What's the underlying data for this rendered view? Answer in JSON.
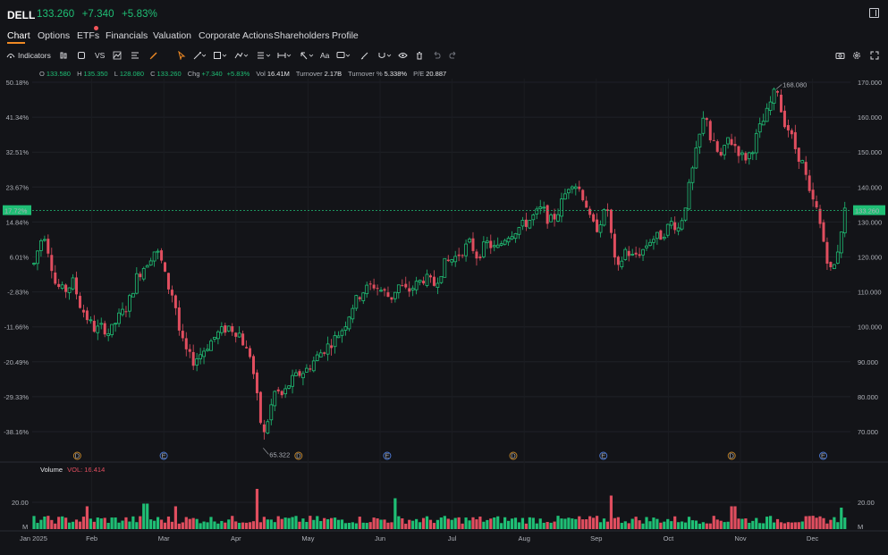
{
  "header": {
    "ticker": "DELL",
    "price": "133.260",
    "change": "+7.340",
    "change_pct": "+5.83%"
  },
  "tabs": [
    {
      "label": "Chart",
      "active": true
    },
    {
      "label": "Options"
    },
    {
      "label": "ETFs",
      "badge": true
    },
    {
      "label": "Financials"
    },
    {
      "label": "Valuation"
    },
    {
      "label": "Corporate Actions"
    },
    {
      "label": "Shareholders"
    },
    {
      "label": "Profile"
    }
  ],
  "toolbar": {
    "indicators_label": "Indicators",
    "vs_label": "VS",
    "text_label": "Aa",
    "icons": [
      "indicators-icon",
      "candle-type-icon",
      "layout-icon",
      "compare-icon",
      "draw-icon",
      "template-icon",
      "brush-icon",
      "cursor-icon",
      "trendline-icon",
      "rect-icon",
      "path-icon",
      "measure-icon",
      "arrow-icon",
      "text-icon",
      "comment-icon",
      "pen-icon",
      "magnet-icon",
      "eye-icon",
      "trash-icon",
      "undo-icon",
      "redo-icon",
      "camera-icon",
      "settings-icon",
      "fullscreen-icon"
    ]
  },
  "ohlc": {
    "o_label": "O",
    "o": "133.580",
    "h_label": "H",
    "h": "135.350",
    "l_label": "L",
    "l": "128.080",
    "c_label": "C",
    "c": "133.260",
    "chg_label": "Chg",
    "chg": "+7.340",
    "chg_pct": "+5.83%",
    "vol_label": "Vol",
    "vol": "16.41M",
    "turnover_label": "Turnover",
    "turnover": "2.17B",
    "turnover_pct_label": "Turnover %",
    "turnover_pct": "5.338%",
    "pe_label": "P/E",
    "pe": "20.887"
  },
  "volume_panel": {
    "label": "Volume",
    "vol_text": "VOL: 16.414",
    "tick": "20.00",
    "unit": "M"
  },
  "colors": {
    "up": "#1fbf75",
    "down": "#e04e5f",
    "accent": "#f08a24",
    "background": "#131418"
  },
  "chart_data": {
    "type": "candlestick",
    "price_axis": {
      "ticks": [
        170,
        160,
        150,
        140,
        130,
        120,
        110,
        100,
        90,
        80,
        70
      ],
      "labels": [
        "170.000",
        "160.000",
        "150.000",
        "140.000",
        "130.000",
        "120.000",
        "110.000",
        "100.000",
        "90.000",
        "80.000",
        "70.000"
      ],
      "range": [
        62,
        172
      ]
    },
    "pct_axis": {
      "labels": [
        "50.18%",
        "41.34%",
        "32.51%",
        "23.67%",
        "14.84%",
        "6.01%",
        "-2.83%",
        "-11.66%",
        "-20.49%",
        "-29.33%",
        "-38.16%"
      ]
    },
    "current_price": {
      "value": 133.26,
      "label": "133.260",
      "pct_label": "17.72%"
    },
    "annotations": [
      {
        "text": "168.080",
        "value": 168.08,
        "month_index": 10.3
      },
      {
        "text": "65.322",
        "value": 65.322,
        "month_index": 3.18
      }
    ],
    "x_axis": {
      "labels": [
        "Jan 2025",
        "Feb",
        "Mar",
        "Apr",
        "May",
        "Jun",
        "Jul",
        "Aug",
        "Sep",
        "Oct",
        "Nov",
        "Dec"
      ]
    },
    "events": [
      {
        "type": "D",
        "month_index": 0.6
      },
      {
        "type": "E",
        "month_index": 1.8
      },
      {
        "type": "D",
        "month_index": 3.67
      },
      {
        "type": "E",
        "month_index": 4.9
      },
      {
        "type": "D",
        "month_index": 6.65
      },
      {
        "type": "E",
        "month_index": 7.9
      },
      {
        "type": "D",
        "month_index": 9.68
      },
      {
        "type": "E",
        "month_index": 10.95
      }
    ],
    "price_path": [
      [
        0.0,
        118
      ],
      [
        0.08,
        124
      ],
      [
        0.14,
        127
      ],
      [
        0.22,
        120
      ],
      [
        0.3,
        112
      ],
      [
        0.42,
        110
      ],
      [
        0.55,
        113
      ],
      [
        0.62,
        107
      ],
      [
        0.75,
        102
      ],
      [
        0.85,
        99
      ],
      [
        0.95,
        100
      ],
      [
        1.05,
        98
      ],
      [
        1.15,
        102
      ],
      [
        1.3,
        106
      ],
      [
        1.42,
        114
      ],
      [
        1.55,
        118
      ],
      [
        1.68,
        122
      ],
      [
        1.75,
        120
      ],
      [
        1.85,
        112
      ],
      [
        1.95,
        108
      ],
      [
        2.0,
        100
      ],
      [
        2.08,
        94
      ],
      [
        2.2,
        90
      ],
      [
        2.3,
        92
      ],
      [
        2.42,
        95
      ],
      [
        2.55,
        98
      ],
      [
        2.7,
        100
      ],
      [
        2.85,
        98
      ],
      [
        2.95,
        93
      ],
      [
        3.0,
        92
      ],
      [
        3.05,
        86
      ],
      [
        3.12,
        76
      ],
      [
        3.18,
        68
      ],
      [
        3.25,
        74
      ],
      [
        3.35,
        82
      ],
      [
        3.45,
        80
      ],
      [
        3.55,
        84
      ],
      [
        3.65,
        86
      ],
      [
        3.8,
        88
      ],
      [
        3.95,
        92
      ],
      [
        4.05,
        94
      ],
      [
        4.15,
        96
      ],
      [
        4.3,
        100
      ],
      [
        4.42,
        106
      ],
      [
        4.55,
        110
      ],
      [
        4.7,
        112
      ],
      [
        4.85,
        110
      ],
      [
        4.95,
        108
      ],
      [
        5.05,
        112
      ],
      [
        5.18,
        110
      ],
      [
        5.3,
        112
      ],
      [
        5.42,
        114
      ],
      [
        5.55,
        112
      ],
      [
        5.7,
        118
      ],
      [
        5.85,
        120
      ],
      [
        5.95,
        122
      ],
      [
        6.05,
        124
      ],
      [
        6.15,
        120
      ],
      [
        6.28,
        124
      ],
      [
        6.42,
        122
      ],
      [
        6.55,
        126
      ],
      [
        6.7,
        128
      ],
      [
        6.85,
        130
      ],
      [
        6.95,
        132
      ],
      [
        7.05,
        134
      ],
      [
        7.15,
        130
      ],
      [
        7.25,
        132
      ],
      [
        7.35,
        137
      ],
      [
        7.45,
        142
      ],
      [
        7.55,
        140
      ],
      [
        7.65,
        136
      ],
      [
        7.72,
        130
      ],
      [
        7.8,
        128
      ],
      [
        7.9,
        132
      ],
      [
        7.98,
        134
      ],
      [
        8.03,
        120
      ],
      [
        8.1,
        116
      ],
      [
        8.2,
        122
      ],
      [
        8.3,
        120
      ],
      [
        8.45,
        122
      ],
      [
        8.55,
        125
      ],
      [
        8.7,
        126
      ],
      [
        8.85,
        130
      ],
      [
        8.95,
        128
      ],
      [
        9.05,
        136
      ],
      [
        9.15,
        146
      ],
      [
        9.25,
        156
      ],
      [
        9.32,
        162
      ],
      [
        9.38,
        154
      ],
      [
        9.48,
        150
      ],
      [
        9.55,
        148
      ],
      [
        9.62,
        154
      ],
      [
        9.72,
        152
      ],
      [
        9.85,
        148
      ],
      [
        9.95,
        150
      ],
      [
        10.05,
        156
      ],
      [
        10.15,
        160
      ],
      [
        10.25,
        166
      ],
      [
        10.32,
        168
      ],
      [
        10.38,
        160
      ],
      [
        10.48,
        156
      ],
      [
        10.58,
        150
      ],
      [
        10.68,
        146
      ],
      [
        10.75,
        138
      ],
      [
        10.85,
        134
      ],
      [
        10.92,
        128
      ],
      [
        11.0,
        120
      ],
      [
        11.05,
        116
      ],
      [
        11.12,
        118
      ],
      [
        11.18,
        126
      ],
      [
        11.25,
        133
      ]
    ],
    "volume_axis": {
      "ticks": [
        20,
        0
      ],
      "labels": [
        "20.00",
        "M"
      ],
      "range": [
        0,
        32
      ]
    },
    "volume_spikes": [
      {
        "month_index": 3.1,
        "value": 30
      },
      {
        "month_index": 1.55,
        "value": 19
      },
      {
        "month_index": 0.75,
        "value": 17
      },
      {
        "month_index": 1.95,
        "value": 17
      },
      {
        "month_index": 5.0,
        "value": 23
      },
      {
        "month_index": 8.0,
        "value": 25
      },
      {
        "month_index": 9.7,
        "value": 17
      },
      {
        "month_index": 11.2,
        "value": 16
      }
    ]
  }
}
